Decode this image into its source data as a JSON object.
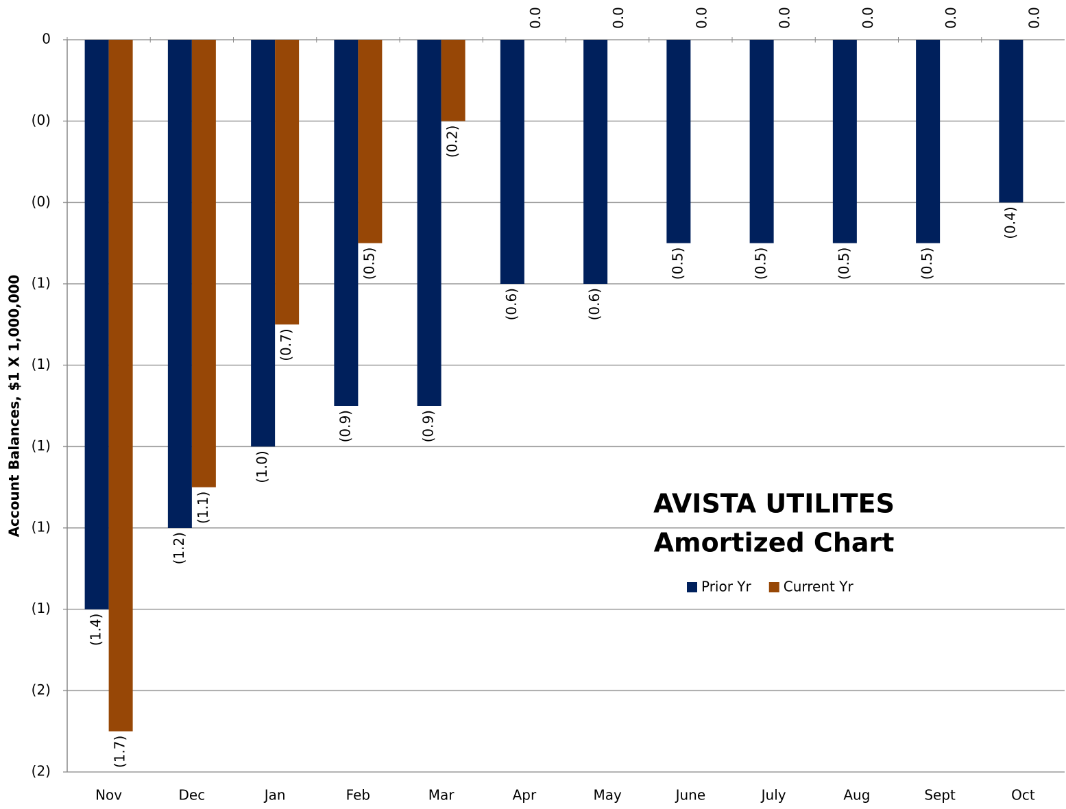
{
  "chart_data": {
    "type": "bar",
    "title": "AVISTA UTILITES",
    "subtitle": "Amortized Chart",
    "y_label": "Account Balances, $1 X 1,000,000",
    "categories": [
      "Nov",
      "Dec",
      "Jan",
      "Feb",
      "Mar",
      "Apr",
      "May",
      "June",
      "July",
      "Aug",
      "Sept",
      "Oct"
    ],
    "series": [
      {
        "name": "Prior Yr",
        "color": "#00205c",
        "values": [
          -1.4,
          -1.2,
          -1.0,
          -0.9,
          -0.9,
          -0.6,
          -0.6,
          -0.5,
          -0.5,
          -0.5,
          -0.5,
          -0.4
        ],
        "value_labels": [
          "(1.4)",
          "(1.2)",
          "(1.0)",
          "(0.9)",
          "(0.9)",
          "(0.6)",
          "(0.6)",
          "(0.5)",
          "(0.5)",
          "(0.5)",
          "(0.5)",
          "(0.4)"
        ]
      },
      {
        "name": "Current Yr",
        "color": "#974706",
        "values": [
          -1.7,
          -1.1,
          -0.7,
          -0.5,
          -0.2,
          0,
          0,
          0,
          0,
          0,
          0,
          0
        ],
        "value_labels": [
          "(1.7)",
          "(1.1)",
          "(0.7)",
          "(0.5)",
          "(0.2)",
          "0.0",
          "0.0",
          "0.0",
          "0.0",
          "0.0",
          "0.0",
          "0.0"
        ]
      }
    ],
    "ylim": [
      -1.8,
      0
    ],
    "yticks": [
      0,
      {
        "value": -0.2,
        "label": "(0)"
      },
      {
        "value": -0.4,
        "label": "(0)"
      },
      {
        "value": -0.6,
        "label": "(1)"
      },
      {
        "value": -0.8,
        "label": "(1)"
      },
      {
        "value": -1.0,
        "label": "(1)"
      },
      {
        "value": -1.2,
        "label": "(1)"
      },
      {
        "value": -1.4,
        "label": "(1)"
      },
      {
        "value": -1.6,
        "label": "(2)"
      },
      {
        "value": -1.8,
        "label": "(2)"
      }
    ],
    "grid": true,
    "legend": "right"
  }
}
